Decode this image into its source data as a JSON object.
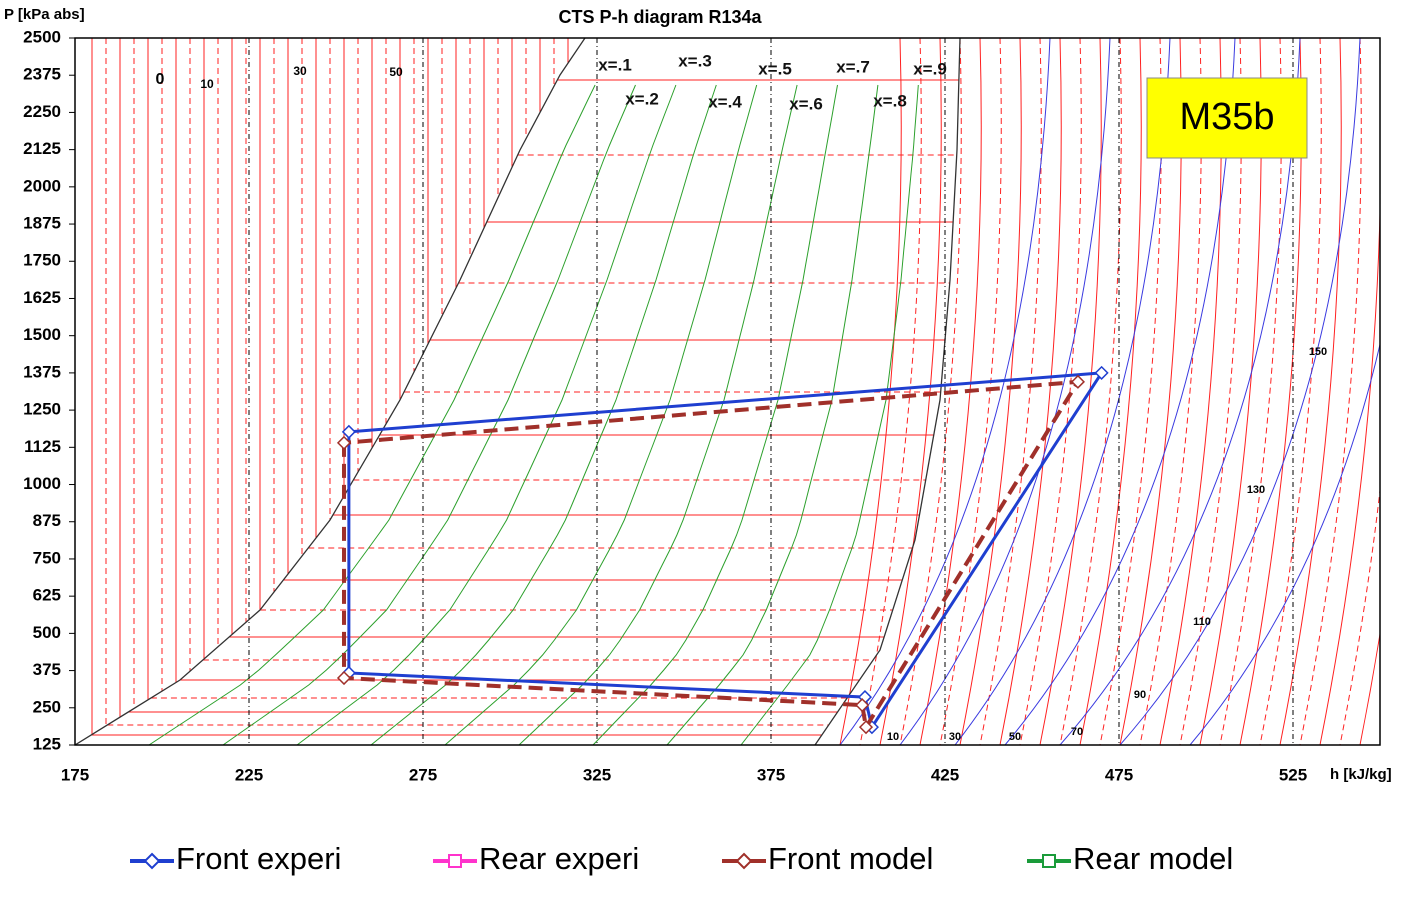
{
  "chart_data": {
    "type": "line",
    "title": "CTS P-h diagram R134a",
    "x_label": "h [kJ/kg]",
    "y_label": "P [kPa abs]",
    "xlim": [
      175,
      550
    ],
    "ylim": [
      125,
      2500
    ],
    "xticks": [
      175,
      225,
      275,
      325,
      375,
      425,
      475,
      525
    ],
    "yticks": [
      125,
      250,
      375,
      500,
      625,
      750,
      875,
      1000,
      1125,
      1250,
      1375,
      1500,
      1625,
      1750,
      1875,
      2000,
      2125,
      2250,
      2375,
      2500
    ],
    "series": [
      {
        "name": "Front experi",
        "color": "#1f3fd0",
        "dashed": false,
        "x": [
          253.7,
          253.7,
          402,
          404,
          470
        ],
        "values": [
          1177,
          367,
          286,
          185,
          1375
        ]
      },
      {
        "name": "Rear experi",
        "color": "#ff33cc",
        "dashed": false,
        "x": [],
        "values": []
      },
      {
        "name": "Front model",
        "color": "#a0302a",
        "dashed": true,
        "x": [
          252.3,
          252.3,
          401.2,
          402.3,
          463.2
        ],
        "values": [
          1140,
          350,
          259,
          185,
          1345
        ]
      },
      {
        "name": "Rear model",
        "color": "#1a9b3a",
        "dashed": false,
        "x": [],
        "values": []
      }
    ],
    "quality_labels": [
      "x=.1",
      "x=.2",
      "x=.3",
      "x=.4",
      "x=.5",
      "x=.6",
      "x=.7",
      "x=.8",
      "x=.9"
    ],
    "liquid_temp_labels": [
      "0",
      "10",
      "30",
      "50"
    ],
    "vapor_temp_labels": [
      "10",
      "30",
      "50",
      "70",
      "90",
      "110",
      "130",
      "150"
    ],
    "note": "M35b"
  }
}
